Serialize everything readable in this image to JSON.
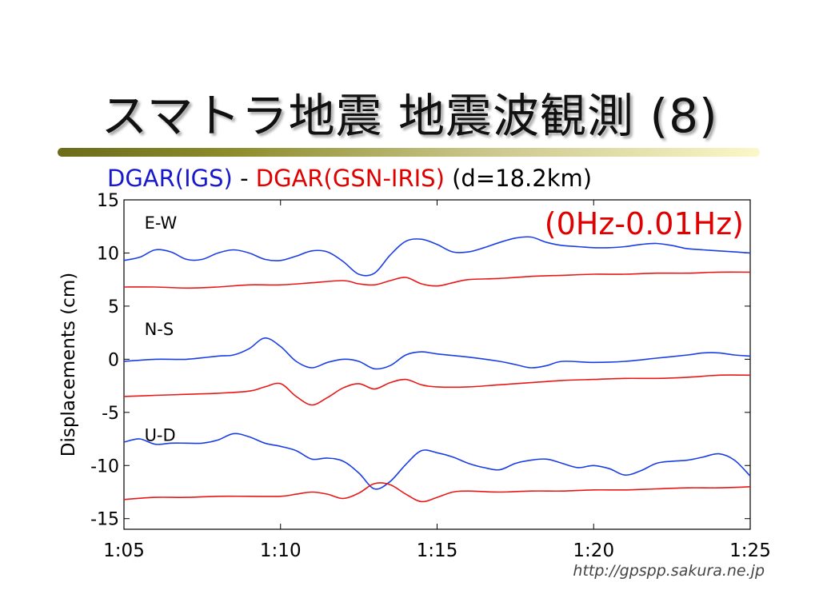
{
  "page": {
    "title": "スマトラ地震 地震波観測 (8)",
    "subtitle_blue": "DGAR(IGS)",
    "subtitle_sep": " - ",
    "subtitle_red": "DGAR(GSN-IRIS)",
    "subtitle_rest": " (d=18.2km)",
    "freq_band": "(0Hz-0.01Hz)",
    "source_url": "http://gpspp.sakura.ne.jp"
  },
  "colors": {
    "blue": "#1a3ee6",
    "red": "#e81818"
  },
  "chart_data": {
    "type": "line",
    "ylabel": "Displacements (cm)",
    "ylim": [
      -16,
      15
    ],
    "xlim": [
      65,
      85
    ],
    "y_ticks": [
      15,
      10,
      5,
      0,
      -5,
      -10,
      -15
    ],
    "y_tick_labels": [
      "15",
      "10",
      "5",
      "0",
      "-5",
      "-10",
      "-15"
    ],
    "x_ticks": [
      65,
      70,
      75,
      80,
      85
    ],
    "x_tick_labels": [
      "1:05",
      "1:10",
      "1:15",
      "1:20",
      "1:25"
    ],
    "panel_labels": [
      {
        "text": "E-W",
        "x": 65.5,
        "y": 13.5
      },
      {
        "text": "N-S",
        "x": 65.5,
        "y": 3.5
      },
      {
        "text": "U-D",
        "x": 65.5,
        "y": -6.5
      }
    ],
    "series": [
      {
        "color": "blue",
        "x": [
          65,
          65.5,
          66,
          66.5,
          67,
          67.5,
          68,
          68.5,
          69,
          69.5,
          70,
          70.5,
          71,
          71.5,
          72,
          72.5,
          73,
          73.5,
          74,
          74.5,
          75,
          75.5,
          76,
          76.5,
          77,
          77.5,
          78,
          78.5,
          79,
          79.5,
          80,
          80.5,
          81,
          81.5,
          82,
          82.5,
          83,
          83.5,
          84,
          84.5,
          85
        ],
        "y": [
          9.3,
          9.6,
          10.3,
          10.1,
          9.4,
          9.4,
          10.0,
          10.3,
          10.0,
          9.4,
          9.3,
          9.7,
          10.2,
          10.1,
          9.2,
          8.0,
          8.1,
          9.8,
          11.1,
          11.3,
          10.8,
          10.1,
          10.1,
          10.5,
          11.0,
          11.4,
          11.5,
          11.0,
          10.7,
          10.6,
          10.5,
          10.5,
          10.6,
          10.8,
          10.9,
          10.7,
          10.4,
          10.3,
          10.2,
          10.1,
          10.0
        ]
      },
      {
        "color": "red",
        "x": [
          65,
          66,
          67,
          68,
          69,
          70,
          71,
          72,
          72.5,
          73,
          73.5,
          74,
          74.5,
          75,
          75.5,
          76,
          77,
          78,
          79,
          80,
          81,
          82,
          83,
          84,
          85
        ],
        "y": [
          6.8,
          6.8,
          6.7,
          6.8,
          7.0,
          7.0,
          7.2,
          7.4,
          7.1,
          7.0,
          7.4,
          7.7,
          7.1,
          6.9,
          7.2,
          7.5,
          7.6,
          7.8,
          7.9,
          8.0,
          8.0,
          8.1,
          8.1,
          8.2,
          8.2
        ]
      },
      {
        "color": "blue",
        "x": [
          65,
          66,
          67,
          68,
          68.5,
          69,
          69.5,
          70,
          70.5,
          71,
          71.5,
          72,
          72.5,
          73,
          73.5,
          74,
          74.5,
          75,
          76,
          77,
          77.5,
          78,
          78.5,
          79,
          80,
          81,
          82,
          83,
          83.5,
          84,
          84.5,
          85
        ],
        "y": [
          -0.2,
          0.0,
          0.0,
          0.3,
          0.4,
          1.0,
          2.0,
          1.2,
          -0.2,
          -0.8,
          -0.3,
          0.0,
          -0.2,
          -0.9,
          -0.6,
          0.4,
          0.7,
          0.5,
          0.2,
          -0.2,
          -0.5,
          -0.8,
          -0.6,
          -0.2,
          -0.3,
          -0.2,
          0.1,
          0.4,
          0.6,
          0.6,
          0.4,
          0.3
        ]
      },
      {
        "color": "red",
        "x": [
          65,
          66,
          67,
          68,
          69,
          69.5,
          70,
          70.5,
          71,
          71.5,
          72,
          72.5,
          73,
          73.5,
          74,
          74.5,
          75,
          76,
          77,
          78,
          79,
          80,
          81,
          82,
          83,
          84,
          85
        ],
        "y": [
          -3.5,
          -3.4,
          -3.3,
          -3.2,
          -3.0,
          -2.6,
          -2.3,
          -3.5,
          -4.3,
          -3.6,
          -2.7,
          -2.3,
          -2.8,
          -2.2,
          -1.9,
          -2.4,
          -2.6,
          -2.6,
          -2.4,
          -2.2,
          -2.0,
          -1.9,
          -1.8,
          -1.8,
          -1.7,
          -1.5,
          -1.5
        ]
      },
      {
        "color": "blue",
        "x": [
          65,
          65.5,
          66,
          66.5,
          67,
          67.5,
          68,
          68.5,
          69,
          69.5,
          70,
          70.5,
          71,
          71.5,
          72,
          72.5,
          73,
          73.5,
          74,
          74.5,
          75,
          75.5,
          76,
          76.5,
          77,
          77.5,
          78,
          78.5,
          79,
          79.5,
          80,
          80.5,
          81,
          81.5,
          82,
          82.5,
          83,
          83.5,
          84,
          84.5,
          85
        ],
        "y": [
          -7.8,
          -7.5,
          -8.0,
          -7.9,
          -7.9,
          -7.9,
          -7.6,
          -7.0,
          -7.3,
          -7.9,
          -8.2,
          -8.6,
          -9.4,
          -9.3,
          -9.6,
          -10.7,
          -12.2,
          -11.5,
          -9.9,
          -8.6,
          -8.8,
          -9.2,
          -9.8,
          -10.2,
          -10.4,
          -9.8,
          -9.5,
          -9.4,
          -9.8,
          -10.2,
          -10.0,
          -10.3,
          -10.9,
          -10.5,
          -9.8,
          -9.6,
          -9.5,
          -9.2,
          -8.9,
          -9.5,
          -11.0
        ]
      },
      {
        "color": "red",
        "x": [
          65,
          66,
          67,
          68,
          69,
          70,
          70.5,
          71,
          71.5,
          72,
          72.5,
          73,
          73.5,
          74,
          74.5,
          75,
          75.5,
          76,
          77,
          78,
          79,
          80,
          81,
          82,
          83,
          84,
          85
        ],
        "y": [
          -13.2,
          -13.0,
          -13.0,
          -12.9,
          -12.9,
          -12.9,
          -12.7,
          -12.5,
          -12.7,
          -13.1,
          -12.6,
          -11.7,
          -11.8,
          -12.7,
          -13.4,
          -13.0,
          -12.5,
          -12.4,
          -12.5,
          -12.4,
          -12.4,
          -12.3,
          -12.3,
          -12.2,
          -12.1,
          -12.1,
          -12.0
        ]
      }
    ]
  }
}
